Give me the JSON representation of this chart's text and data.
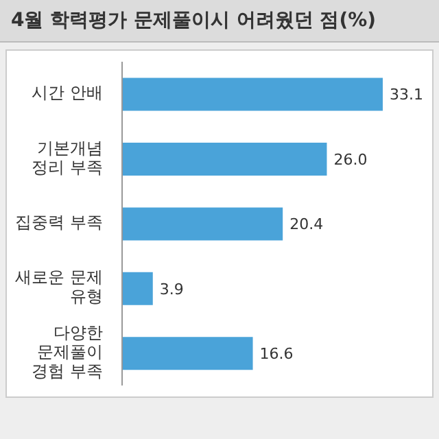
{
  "chart_data": {
    "type": "bar",
    "orientation": "horizontal",
    "title": "4월 학력평가 문제풀이시 어려웠던 점(%)",
    "categories": [
      "시간 안배",
      "기본개념\n정리 부족",
      "집중력 부족",
      "새로운 문제\n유형",
      "다양한\n문제풀이\n경험 부족"
    ],
    "values": [
      33.1,
      26.0,
      20.4,
      3.9,
      16.6
    ],
    "value_labels": [
      "33.1",
      "26.0",
      "20.4",
      "3.9",
      "16.6"
    ],
    "color": "#4aa3d9",
    "grid": false
  }
}
